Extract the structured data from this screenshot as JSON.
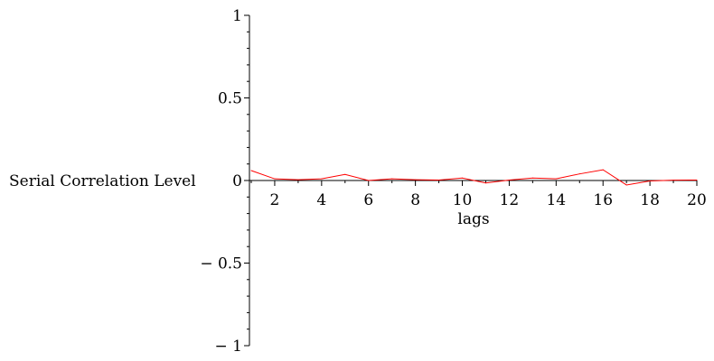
{
  "chart_data": {
    "type": "line",
    "title": "",
    "xlabel": "lags",
    "ylabel": "Serial Correlation Level",
    "xlim": [
      1,
      20
    ],
    "ylim": [
      -1,
      1
    ],
    "grid": false,
    "x_ticks": [
      2,
      4,
      6,
      8,
      10,
      12,
      14,
      16,
      18,
      20
    ],
    "x_tick_labels": [
      "2",
      "4",
      "6",
      "8",
      "10",
      "12",
      "14",
      "16",
      "18",
      "20"
    ],
    "y_ticks": [
      1,
      0.5,
      0,
      -0.5,
      -1
    ],
    "y_tick_labels": [
      "1",
      "0.5",
      "0",
      "-0.5",
      "-1"
    ],
    "series": [
      {
        "color": "#ff0000",
        "x": [
          1,
          2,
          3,
          4,
          5,
          6,
          7,
          8,
          9,
          10,
          11,
          12,
          13,
          14,
          15,
          16,
          17,
          18,
          19,
          20
        ],
        "y": [
          0.06,
          0.01,
          0.005,
          0.01,
          0.037,
          0.0,
          0.01,
          0.005,
          0.003,
          0.015,
          -0.015,
          0.003,
          0.015,
          0.01,
          0.04,
          0.065,
          -0.027,
          -0.003,
          0.002,
          0.003
        ]
      }
    ]
  }
}
